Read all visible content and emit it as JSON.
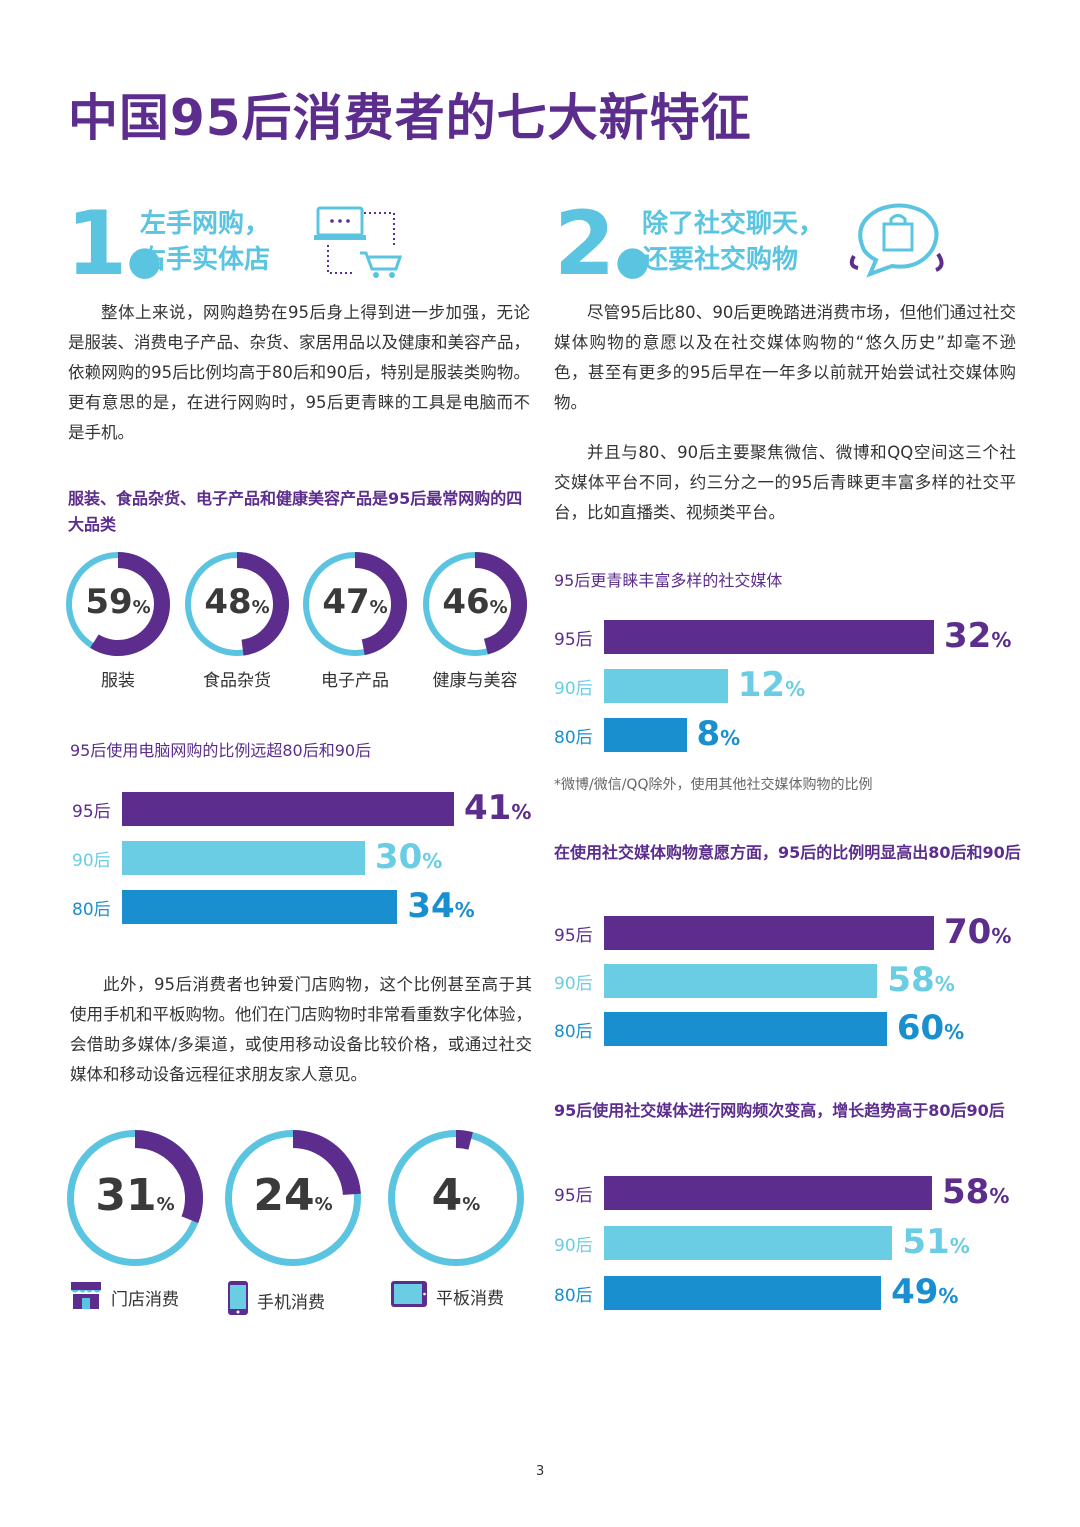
{
  "title": "中国95后消费者的七大新特征",
  "colors": {
    "purple": "#5c2d8c",
    "light_blue": "#6bcde3",
    "blue": "#1a8fd0",
    "cyan": "#5bc4e0"
  },
  "section1": {
    "number": "1",
    "heading_line1": "左手网购，",
    "heading_line2": "右手实体店",
    "icon": "laptop-cart-icon",
    "paragraph": "整体上来说，网购趋势在95后身上得到进一步加强，无论是服装、消费电子产品、杂货、家居用品以及健康和美容产品，依赖网购的95后比例均高于80后和90后，特别是服装类购物。更有意思的是，在进行网购时，95后更青睐的工具是电脑而不是手机。",
    "paragraph2": "此外，95后消费者也钟爱门店购物，这个比例甚至高于其使用手机和平板购物。他们在门店购物时非常看重数字化体验，会借助多媒体/多渠道，或使用移动设备比较价格，或通过社交媒体和移动设备远程征求朋友家人意见。"
  },
  "section2": {
    "number": "2",
    "heading_line1": "除了社交聊天，",
    "heading_line2": "还要社交购物",
    "icon": "chat-bag-icon",
    "paragraph": "尽管95后比80、90后更晚踏进消费市场，但他们通过社交媒体购物的意愿以及在社交媒体购物的“悠久历史”却毫不逊色，甚至有更多的95后早在一年多以前就开始尝试社交媒体购物。",
    "paragraph2": "并且与80、90后主要聚焦微信、微博和QQ空间这三个社交媒体平台不同，约三分之一的95后青睐更丰富多样的社交平台，比如直播类、视频类平台。"
  },
  "page_number": "3",
  "chart_data": [
    {
      "type": "donut",
      "title": "服装、食品杂货、电子产品和健康美容产品是95后最常网购的四大品类",
      "categories": [
        "服装",
        "食品杂货",
        "电子产品",
        "健康与美容"
      ],
      "values": [
        59,
        48,
        47,
        46
      ],
      "value_labels": [
        "59",
        "48",
        "47",
        "46"
      ],
      "unit": "%"
    },
    {
      "type": "bar",
      "title": "95后使用电脑网购的比例远超80后和90后",
      "categories": [
        "95后",
        "90后",
        "80后"
      ],
      "values": [
        41,
        30,
        34
      ],
      "value_labels": [
        "41",
        "30",
        "34"
      ],
      "unit": "%"
    },
    {
      "type": "donut",
      "categories": [
        "门店消费",
        "手机消费",
        "平板消费"
      ],
      "values": [
        31,
        24,
        4
      ],
      "value_labels": [
        "31",
        "24",
        "4"
      ],
      "icons": [
        "store-icon",
        "phone-icon",
        "tablet-icon"
      ],
      "unit": "%"
    },
    {
      "type": "bar",
      "title": "95后更青睐丰富多样的社交媒体",
      "categories": [
        "95后",
        "90后",
        "80后"
      ],
      "values": [
        32,
        12,
        8
      ],
      "value_labels": [
        "32",
        "12",
        "8"
      ],
      "unit": "%",
      "note": "*微博/微信/QQ除外，使用其他社交媒体购物的比例"
    },
    {
      "type": "bar",
      "title": "在使用社交媒体购物意愿方面，95后的比例明显高出80后和90后",
      "categories": [
        "95后",
        "90后",
        "80后"
      ],
      "values": [
        70,
        58,
        60
      ],
      "value_labels": [
        "70",
        "58",
        "60"
      ],
      "unit": "%"
    },
    {
      "type": "bar",
      "title": "95后使用社交媒体进行网购频次变高，增长趋势高于80后90后",
      "categories": [
        "95后",
        "90后",
        "80后"
      ],
      "values": [
        58,
        51,
        49
      ],
      "value_labels": [
        "58",
        "51",
        "49"
      ],
      "unit": "%"
    }
  ]
}
